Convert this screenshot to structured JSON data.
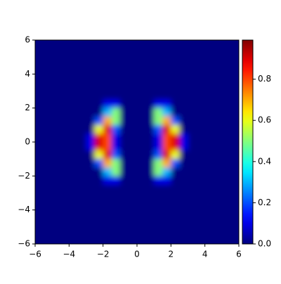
{
  "chart_data": {
    "type": "heatmap",
    "colormap": "jet",
    "xlim": [
      -6,
      6
    ],
    "ylim": [
      -6,
      6
    ],
    "zlim": [
      0,
      0.99
    ],
    "xticks": [
      {
        "value": -6,
        "label": "−6"
      },
      {
        "value": -4,
        "label": "−4"
      },
      {
        "value": -2,
        "label": "−2"
      },
      0,
      2,
      4,
      6
    ],
    "yticks": [
      {
        "value": -6,
        "label": "−6"
      },
      {
        "value": -4,
        "label": "−4"
      },
      {
        "value": -2,
        "label": "−2"
      },
      0,
      2,
      4,
      6
    ],
    "zticks": [
      {
        "value": 0,
        "label": "0.0"
      },
      0.2,
      0.4,
      0.6,
      0.8
    ],
    "z": [
      [
        0,
        0,
        0,
        0,
        0,
        0,
        0,
        0,
        0,
        0,
        0,
        0,
        0,
        0,
        0,
        0,
        0,
        0,
        0,
        0,
        0,
        0,
        0,
        0
      ],
      [
        0,
        0,
        0,
        0,
        0,
        0,
        0,
        0,
        0,
        0,
        0,
        0,
        0,
        0,
        0,
        0,
        0,
        0,
        0,
        0,
        0,
        0,
        0,
        0
      ],
      [
        0,
        0,
        0,
        0,
        0,
        0,
        0,
        0,
        0,
        0,
        0,
        0,
        0,
        0,
        0,
        0,
        0,
        0,
        0,
        0,
        0,
        0,
        0,
        0
      ],
      [
        0,
        0,
        0,
        0,
        0,
        0,
        0,
        0,
        0,
        0,
        0,
        0,
        0,
        0,
        0,
        0,
        0,
        0,
        0,
        0,
        0,
        0,
        0,
        0
      ],
      [
        0,
        0,
        0,
        0,
        0,
        0,
        0,
        0,
        0,
        0,
        0,
        0,
        0,
        0,
        0,
        0,
        0,
        0,
        0,
        0,
        0,
        0,
        0,
        0
      ],
      [
        0,
        0,
        0,
        0,
        0,
        0,
        0,
        0,
        0,
        0,
        0,
        0,
        0,
        0,
        0,
        0,
        0,
        0,
        0,
        0,
        0,
        0,
        0,
        0
      ],
      [
        0,
        0,
        0,
        0,
        0,
        0,
        0,
        0,
        0,
        0,
        0,
        0,
        0,
        0,
        0,
        0,
        0,
        0,
        0,
        0,
        0,
        0,
        0,
        0
      ],
      [
        0,
        0,
        0,
        0,
        0,
        0,
        0,
        0,
        0.1,
        0.1,
        0,
        0,
        0,
        0,
        0.1,
        0.1,
        0,
        0,
        0,
        0,
        0,
        0,
        0,
        0
      ],
      [
        0,
        0,
        0,
        0,
        0,
        0,
        0,
        0,
        0.3,
        0.5,
        0,
        0,
        0,
        0,
        0.5,
        0.3,
        0,
        0,
        0,
        0,
        0,
        0,
        0,
        0
      ],
      [
        0,
        0,
        0,
        0,
        0,
        0,
        0,
        0.2,
        0.7,
        0.5,
        0,
        0,
        0,
        0,
        0.5,
        0.7,
        0.2,
        0,
        0,
        0,
        0,
        0,
        0,
        0
      ],
      [
        0,
        0,
        0,
        0,
        0,
        0,
        0,
        0.6,
        0.9,
        0.2,
        0,
        0,
        0,
        0,
        0.2,
        0.9,
        0.6,
        0,
        0,
        0,
        0,
        0,
        0,
        0
      ],
      [
        0,
        0,
        0,
        0,
        0,
        0,
        0.1,
        0.9,
        0.8,
        0.1,
        0,
        0,
        0,
        0,
        0.1,
        0.8,
        0.9,
        0.1,
        0,
        0,
        0,
        0,
        0,
        0
      ],
      [
        0,
        0,
        0,
        0,
        0,
        0,
        0.1,
        0.9,
        0.8,
        0.1,
        0,
        0,
        0,
        0,
        0.1,
        0.8,
        0.9,
        0.1,
        0,
        0,
        0,
        0,
        0,
        0
      ],
      [
        0,
        0,
        0,
        0,
        0,
        0,
        0,
        0.6,
        0.9,
        0.2,
        0,
        0,
        0,
        0,
        0.2,
        0.9,
        0.6,
        0,
        0,
        0,
        0,
        0,
        0,
        0
      ],
      [
        0,
        0,
        0,
        0,
        0,
        0,
        0,
        0.2,
        0.7,
        0.5,
        0,
        0,
        0,
        0,
        0.5,
        0.7,
        0.2,
        0,
        0,
        0,
        0,
        0,
        0,
        0
      ],
      [
        0,
        0,
        0,
        0,
        0,
        0,
        0,
        0,
        0.3,
        0.5,
        0,
        0,
        0,
        0,
        0.5,
        0.3,
        0,
        0,
        0,
        0,
        0,
        0,
        0,
        0
      ],
      [
        0,
        0,
        0,
        0,
        0,
        0,
        0,
        0,
        0.1,
        0.1,
        0,
        0,
        0,
        0,
        0.1,
        0.1,
        0,
        0,
        0,
        0,
        0,
        0,
        0,
        0
      ],
      [
        0,
        0,
        0,
        0,
        0,
        0,
        0,
        0,
        0,
        0,
        0,
        0,
        0,
        0,
        0,
        0,
        0,
        0,
        0,
        0,
        0,
        0,
        0,
        0
      ],
      [
        0,
        0,
        0,
        0,
        0,
        0,
        0,
        0,
        0,
        0,
        0,
        0,
        0,
        0,
        0,
        0,
        0,
        0,
        0,
        0,
        0,
        0,
        0,
        0
      ],
      [
        0,
        0,
        0,
        0,
        0,
        0,
        0,
        0,
        0,
        0,
        0,
        0,
        0,
        0,
        0,
        0,
        0,
        0,
        0,
        0,
        0,
        0,
        0,
        0
      ],
      [
        0,
        0,
        0,
        0,
        0,
        0,
        0,
        0,
        0,
        0,
        0,
        0,
        0,
        0,
        0,
        0,
        0,
        0,
        0,
        0,
        0,
        0,
        0,
        0
      ],
      [
        0,
        0,
        0,
        0,
        0,
        0,
        0,
        0,
        0,
        0,
        0,
        0,
        0,
        0,
        0,
        0,
        0,
        0,
        0,
        0,
        0,
        0,
        0,
        0
      ],
      [
        0,
        0,
        0,
        0,
        0,
        0,
        0,
        0,
        0,
        0,
        0,
        0,
        0,
        0,
        0,
        0,
        0,
        0,
        0,
        0,
        0,
        0,
        0,
        0
      ],
      [
        0,
        0,
        0,
        0,
        0,
        0,
        0,
        0,
        0,
        0,
        0,
        0,
        0,
        0,
        0,
        0,
        0,
        0,
        0,
        0,
        0,
        0,
        0,
        0
      ]
    ]
  }
}
